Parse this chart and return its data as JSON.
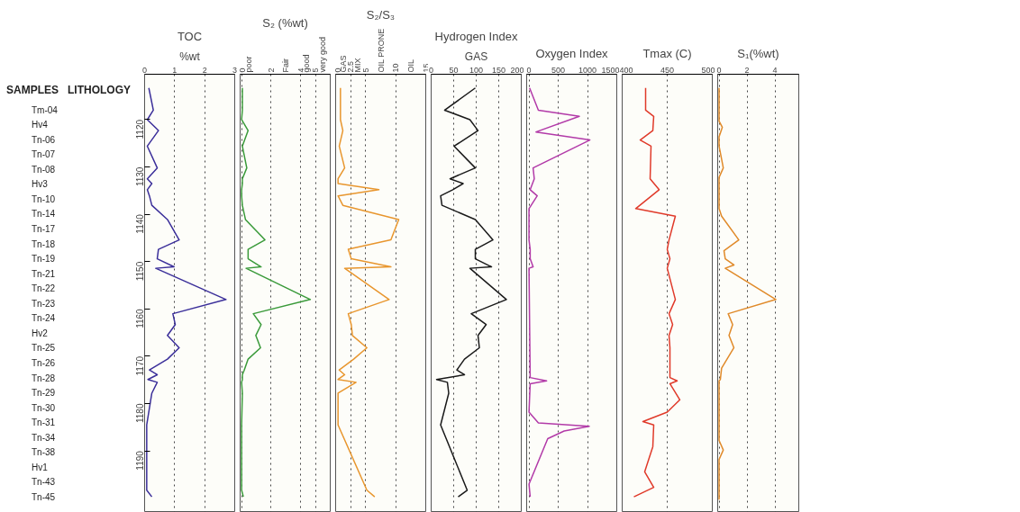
{
  "chart_data": [
    {
      "type": "line",
      "orientation": "horizontal",
      "title": "TOC",
      "xlabel": "%wt",
      "xlim": [
        0,
        3
      ],
      "xticks": [
        0,
        1,
        2,
        3
      ],
      "ylim": [
        1203,
        1110.4
      ],
      "yticks": [
        1120,
        1130,
        1140,
        1150,
        1160,
        1170,
        1180,
        1190
      ],
      "annotations": [
        "SAMPLES",
        "LITHOLOGY",
        "Tm-04",
        "Hv4",
        "Tn-06",
        "Tn-07",
        "Tn-08",
        "Hv3",
        "Tn-10",
        "Tn-14",
        "Tn-17",
        "Tn-18",
        "Tn-19",
        "Tn-21",
        "Tn-22",
        "Tn-23",
        "Tn-24",
        "Hv2",
        "Tn-25",
        "Tn-26",
        "Tn-28",
        "Tn-29",
        "Tn-30",
        "Tn-31",
        "Tn-34",
        "Tn-38",
        "Hv1",
        "Tn-43",
        "Tn-45"
      ],
      "grid": "x",
      "series": [
        {
          "color": "#3b2f9a",
          "x": [
            1113.3,
            1118.0,
            1120.0,
            1122.3,
            1125.6,
            1130.2,
            1132.5,
            1133.5,
            1134.8,
            1136.1,
            1138.1,
            1141.1,
            1145.4,
            1147.4,
            1149.4,
            1151.1,
            1151.4,
            1158.0,
            1161.0,
            1163.3,
            1165.6,
            1168.2,
            1170.6,
            1172.9,
            1173.9,
            1174.9,
            1175.5,
            1177.8,
            1184.5,
            1198.3,
            1199.7
          ],
          "values": [
            0.14,
            0.29,
            0.09,
            0.46,
            0.09,
            0.42,
            0.09,
            0.24,
            0.09,
            0.16,
            0.24,
            0.76,
            1.15,
            0.46,
            0.42,
            0.98,
            0.37,
            2.71,
            0.94,
            1.02,
            0.76,
            1.15,
            0.76,
            0.16,
            0.42,
            0.11,
            0.42,
            0.24,
            0.07,
            0.07,
            0.24
          ]
        }
      ]
    },
    {
      "type": "line",
      "orientation": "horizontal",
      "title": "S₂ (%wt)",
      "xlim": [
        -0.1,
        6
      ],
      "xticks": [
        0,
        2,
        4,
        5,
        {
          "value": 0.5,
          "label": "poor"
        },
        {
          "value": 3.0,
          "label": "Fair"
        },
        {
          "value": 4.4,
          "label": "good"
        },
        {
          "value": 5.5,
          "label": "very good"
        }
      ],
      "ylim": [
        1203,
        1110.4
      ],
      "tick_labels": "x",
      "grid": "x",
      "series": [
        {
          "color": "#3a9a3a",
          "x": [
            1113.3,
            1118.0,
            1120.0,
            1122.3,
            1125.6,
            1130.2,
            1132.5,
            1133.5,
            1134.8,
            1136.1,
            1138.1,
            1141.1,
            1145.4,
            1147.4,
            1149.4,
            1151.1,
            1151.4,
            1158.0,
            1161.0,
            1163.3,
            1165.6,
            1168.2,
            1170.6,
            1172.9,
            1173.9,
            1174.9,
            1175.5,
            1177.8,
            1184.5,
            1198.3,
            1199.7
          ],
          "values": [
            0.05,
            0.05,
            0,
            0.44,
            0.05,
            0.35,
            0.05,
            0.05,
            0,
            0,
            0.05,
            0.26,
            1.58,
            0.44,
            0.44,
            1.32,
            0.3,
            4.65,
            0.79,
            1.32,
            0.96,
            1.28,
            0.44,
            0.18,
            0.05,
            0.05,
            0,
            0.05,
            0,
            0,
            0.12
          ]
        }
      ]
    },
    {
      "type": "line",
      "orientation": "horizontal",
      "title": "S₂/S₃",
      "xlim": [
        0,
        15
      ],
      "xticks": [
        0,
        2.5,
        5,
        10,
        15,
        {
          "value": 1.2,
          "label": "GAS"
        },
        {
          "value": 3.6,
          "label": "MIX"
        },
        {
          "value": 7.5,
          "label": "OIL PRONE"
        },
        {
          "value": 12.5,
          "label": "OIL"
        }
      ],
      "ylim": [
        1203,
        1110.4
      ],
      "tick_labels": "x",
      "grid": "x",
      "series": [
        {
          "color": "#e8962e",
          "x": [
            1113.3,
            1118.0,
            1120.0,
            1122.3,
            1125.6,
            1130.2,
            1132.5,
            1133.5,
            1134.8,
            1136.1,
            1138.1,
            1141.1,
            1145.4,
            1147.4,
            1149.4,
            1151.1,
            1151.4,
            1158.0,
            1161.0,
            1163.3,
            1165.6,
            1168.2,
            1170.6,
            1172.9,
            1173.9,
            1174.9,
            1175.5,
            1177.8,
            1184.5,
            1198.3,
            1199.7
          ],
          "values": [
            0.8,
            0.8,
            0.8,
            1.2,
            0.6,
            1.5,
            0.4,
            0.4,
            7.2,
            0.4,
            1.2,
            10.5,
            9.2,
            2.1,
            2.6,
            9.2,
            1.5,
            8.9,
            2.1,
            2.6,
            2.8,
            5.2,
            3.0,
            0.6,
            1.5,
            0.4,
            3.4,
            0.4,
            0.4,
            5.2,
            6.5
          ]
        }
      ]
    },
    {
      "type": "line",
      "orientation": "horizontal",
      "title": "Hydrogen Index",
      "xlabel": "GAS",
      "xlim": [
        0,
        200
      ],
      "xticks": [
        0,
        50,
        100,
        150,
        200
      ],
      "ylim": [
        1203,
        1110.4
      ],
      "tick_labels": "x",
      "grid": "x",
      "series": [
        {
          "color": "#1a1a1a",
          "x": [
            1113.3,
            1118.0,
            1120.0,
            1122.3,
            1125.6,
            1130.2,
            1132.5,
            1133.5,
            1134.8,
            1136.1,
            1138.1,
            1141.1,
            1145.4,
            1147.4,
            1149.4,
            1151.1,
            1151.4,
            1158.0,
            1161.0,
            1163.3,
            1165.6,
            1168.2,
            1170.6,
            1172.9,
            1173.9,
            1174.9,
            1175.5,
            1177.8,
            1184.5,
            1198.3,
            1199.7
          ],
          "values": [
            98,
            30,
            86,
            104,
            51,
            98,
            42,
            71,
            48,
            21,
            24,
            98,
            137,
            98,
            98,
            134,
            86,
            167,
            89,
            122,
            104,
            107,
            74,
            57,
            74,
            12,
            36,
            39,
            21,
            80,
            60
          ]
        }
      ]
    },
    {
      "type": "line",
      "orientation": "horizontal",
      "title": "Oxygen Index",
      "xlim": [
        -40,
        1500
      ],
      "xticks": [
        0,
        500,
        1000,
        1500
      ],
      "ylim": [
        1203,
        1110.4
      ],
      "tick_labels": "x",
      "grid": "x",
      "series": [
        {
          "color": "#b23aa8",
          "x": [
            1113.3,
            1118.0,
            1119.3,
            1122.6,
            1124.3,
            1130.2,
            1132.5,
            1134.8,
            1136.1,
            1138.8,
            1140.4,
            1145.4,
            1147.4,
            1149.4,
            1151.1,
            1151.4,
            1174.5,
            1175.2,
            1175.8,
            1181.8,
            1184.1,
            1184.8,
            1185.8,
            1187.4,
            1197.0,
            1199.7
          ],
          "values": [
            10,
            160,
            860,
            120,
            1040,
            70,
            90,
            20,
            140,
            0,
            0,
            0,
            20,
            20,
            70,
            0,
            20,
            300,
            20,
            0,
            160,
            1030,
            600,
            320,
            0,
            20
          ]
        }
      ]
    },
    {
      "type": "line",
      "orientation": "horizontal",
      "title": "Tmax (C)",
      "xlim": [
        400,
        500
      ],
      "xticks": [
        400,
        450,
        500
      ],
      "ylim": [
        1203,
        1110.4
      ],
      "tick_labels": "x",
      "grid": "x",
      "series": [
        {
          "color": "#e03a2a",
          "x": [
            1113.3,
            1118.0,
            1119.3,
            1122.3,
            1124.3,
            1125.6,
            1132.5,
            1134.8,
            1138.8,
            1140.4,
            1145.4,
            1147.4,
            1149.4,
            1151.4,
            1158.0,
            1161.0,
            1163.3,
            1165.6,
            1168.2,
            1174.5,
            1175.2,
            1175.8,
            1179.2,
            1181.8,
            1183.8,
            1184.5,
            1189.1,
            1194.4,
            1197.7,
            1199.7
          ],
          "values": [
            426,
            426,
            435,
            434,
            420,
            432,
            431,
            441,
            415,
            459,
            452,
            450,
            453,
            450,
            459,
            452,
            456,
            452,
            453,
            453,
            461,
            453,
            464,
            450,
            423,
            435,
            434,
            425,
            435,
            413
          ]
        }
      ]
    },
    {
      "type": "line",
      "orientation": "horizontal",
      "title": "S₁(%wt)",
      "xlim": [
        -0.1,
        5.7
      ],
      "xticks": [
        0,
        2,
        4
      ],
      "ylim": [
        1203,
        1110.4
      ],
      "tick_labels": "x",
      "grid": "x",
      "series": [
        {
          "color": "#e08a2a",
          "x": [
            1113.3,
            1120.3,
            1121.6,
            1123.6,
            1125.6,
            1130.2,
            1132.2,
            1138.8,
            1140.4,
            1145.4,
            1147.7,
            1149.4,
            1150.7,
            1151.4,
            1158.0,
            1161.0,
            1163.3,
            1165.6,
            1168.2,
            1172.5,
            1174.9,
            1175.2,
            1187.8,
            1189.8,
            1191.8,
            1200.3
          ],
          "values": [
            0,
            0,
            0.23,
            0,
            0,
            0.3,
            0,
            0,
            0.18,
            1.41,
            0.35,
            0.44,
            1.06,
            0.44,
            4.06,
            0.65,
            0.97,
            0.71,
            1.06,
            0.18,
            0.09,
            0,
            0,
            0.3,
            0,
            0
          ]
        }
      ]
    }
  ]
}
